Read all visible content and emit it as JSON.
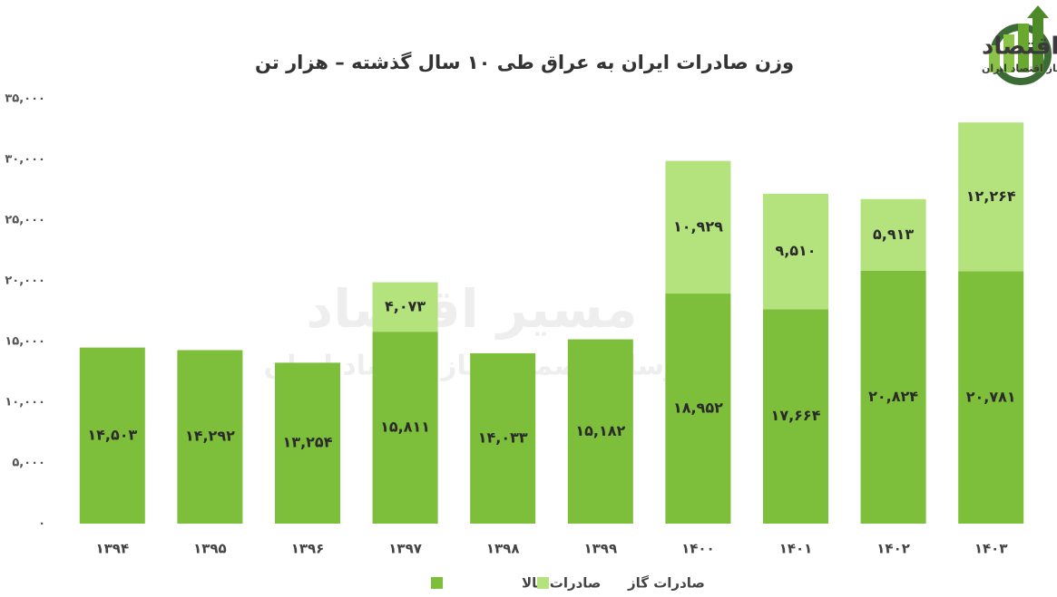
{
  "logo": {
    "name": "مسیر اقتصاد",
    "tagline": "رسانه تصمیم ساز اقتصاد ایران"
  },
  "chart_data": {
    "type": "stacked-bar",
    "title": "وزن صادرات ایران به عراق طی ۱۰ سال گذشته – هزار تن",
    "categories": [
      "۱۳۹۴",
      "۱۳۹۵",
      "۱۳۹۶",
      "۱۳۹۷",
      "۱۳۹۸",
      "۱۳۹۹",
      "۱۴۰۰",
      "۱۴۰۱",
      "۱۴۰۲",
      "۱۴۰۳"
    ],
    "series": [
      {
        "name": "صادرات کالا",
        "color": "#7dbe3a",
        "values": [
          14503,
          14292,
          13254,
          15811,
          14033,
          15182,
          18952,
          17664,
          20824,
          20781
        ],
        "value_labels": [
          "۱۴,۵۰۳",
          "۱۴,۲۹۲",
          "۱۳,۲۵۴",
          "۱۵,۸۱۱",
          "۱۴,۰۳۳",
          "۱۵,۱۸۲",
          "۱۸,۹۵۲",
          "۱۷,۶۶۴",
          "۲۰,۸۲۴",
          "۲۰,۷۸۱"
        ]
      },
      {
        "name": "صادرات گاز",
        "color": "#b4e27d",
        "values": [
          null,
          null,
          null,
          4073,
          null,
          null,
          10929,
          9510,
          5913,
          12264
        ],
        "value_labels": [
          null,
          null,
          null,
          "۴,۰۷۳",
          null,
          null,
          "۱۰,۹۲۹",
          "۹,۵۱۰",
          "۵,۹۱۳",
          "۱۲,۲۶۴"
        ]
      }
    ],
    "ylim": [
      0,
      35000
    ],
    "yticks": [
      {
        "value": 0,
        "label": "۰"
      },
      {
        "value": 5000,
        "label": "۵,۰۰۰"
      },
      {
        "value": 10000,
        "label": "۱۰,۰۰۰"
      },
      {
        "value": 15000,
        "label": "۱۵,۰۰۰"
      },
      {
        "value": 20000,
        "label": "۲۰,۰۰۰"
      },
      {
        "value": 25000,
        "label": "۲۵,۰۰۰"
      },
      {
        "value": 30000,
        "label": "۳۰,۰۰۰"
      },
      {
        "value": 35000,
        "label": "۳۵,۰۰۰"
      }
    ],
    "grid": false
  }
}
